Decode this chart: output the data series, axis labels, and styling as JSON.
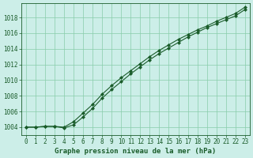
{
  "title": "Graphe pression niveau de la mer (hPa)",
  "background_color": "#cceee8",
  "grid_color": "#88ccaa",
  "line_color": "#1a5c2a",
  "marker": "D",
  "markersize": 2.0,
  "linewidth": 0.8,
  "xlim": [
    -0.5,
    23.5
  ],
  "ylim": [
    1003.0,
    1019.8
  ],
  "xticks": [
    0,
    1,
    2,
    3,
    4,
    5,
    6,
    7,
    8,
    9,
    10,
    11,
    12,
    13,
    14,
    15,
    16,
    17,
    18,
    19,
    20,
    21,
    22,
    23
  ],
  "yticks": [
    1004,
    1006,
    1008,
    1010,
    1012,
    1014,
    1016,
    1018
  ],
  "line1_x": [
    0,
    1,
    2,
    3,
    4,
    5,
    6,
    7,
    8,
    9,
    10,
    11,
    12,
    13,
    14,
    15,
    16,
    17,
    18,
    19,
    20,
    21,
    22,
    23
  ],
  "line1_y": [
    1004.0,
    1004.0,
    1004.1,
    1004.1,
    1003.9,
    1004.3,
    1005.3,
    1006.4,
    1007.7,
    1008.8,
    1009.8,
    1010.8,
    1011.7,
    1012.6,
    1013.4,
    1014.1,
    1014.8,
    1015.5,
    1016.1,
    1016.7,
    1017.2,
    1017.7,
    1018.2,
    1019.0
  ],
  "line2_x": [
    0,
    1,
    2,
    3,
    4,
    5,
    6,
    7,
    8,
    9,
    10,
    11,
    12,
    13,
    14,
    15,
    16,
    17,
    18,
    19,
    20,
    21,
    22,
    23
  ],
  "line2_y": [
    1004.0,
    1004.0,
    1004.1,
    1004.1,
    1004.0,
    1004.7,
    1005.8,
    1006.9,
    1008.2,
    1009.3,
    1010.3,
    1011.2,
    1012.1,
    1013.0,
    1013.8,
    1014.5,
    1015.2,
    1015.8,
    1016.4,
    1016.9,
    1017.5,
    1018.0,
    1018.5,
    1019.3
  ],
  "tick_fontsize": 5.5,
  "title_fontsize": 6.5
}
